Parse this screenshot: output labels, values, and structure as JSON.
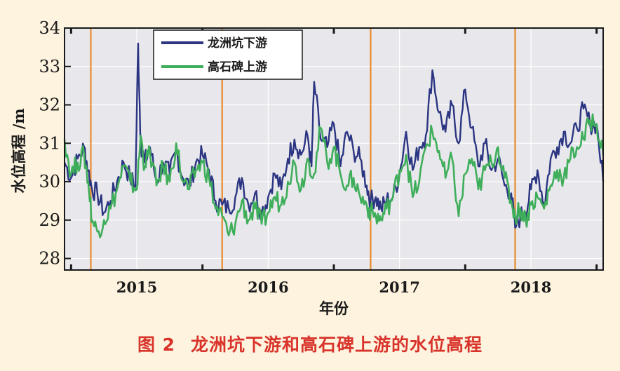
{
  "caption": {
    "figure_number": "图 2",
    "title": "龙洲坑下游和高石碑上游的水位高程"
  },
  "colors": {
    "background": "#fdf3de",
    "plot_bg": "#e8e8ec",
    "grid": "#ffffff",
    "series1": "#2b3582",
    "series2": "#3fae5a",
    "marker_line": "#e88a2e",
    "caption": "#d9342b"
  },
  "chart_data": {
    "type": "line",
    "title": "",
    "xlabel": "年份",
    "ylabel": "水位高程 /m",
    "xlim": [
      2014.45,
      2018.55
    ],
    "ylim": [
      27.7,
      34
    ],
    "yticks": [
      28,
      29,
      30,
      31,
      32,
      33,
      34
    ],
    "xticks": [
      {
        "value": 2015,
        "label": "2015"
      },
      {
        "value": 2016,
        "label": "2016"
      },
      {
        "value": 2017,
        "label": "2017"
      },
      {
        "value": 2018,
        "label": "2018"
      }
    ],
    "grid": true,
    "legend_position": "top-left",
    "vertical_markers": [
      2014.65,
      2015.65,
      2016.78,
      2017.88
    ],
    "series": [
      {
        "name": "龙洲坑下游",
        "x": [
          2014.45,
          2014.5,
          2014.55,
          2014.6,
          2014.63,
          2014.66,
          2014.7,
          2014.75,
          2014.8,
          2014.85,
          2014.9,
          2014.95,
          2014.99,
          2015.01,
          2015.03,
          2015.06,
          2015.1,
          2015.15,
          2015.2,
          2015.25,
          2015.3,
          2015.35,
          2015.4,
          2015.45,
          2015.5,
          2015.55,
          2015.6,
          2015.65,
          2015.7,
          2015.75,
          2015.8,
          2015.85,
          2015.9,
          2015.95,
          2016.0,
          2016.05,
          2016.1,
          2016.15,
          2016.2,
          2016.25,
          2016.3,
          2016.33,
          2016.35,
          2016.4,
          2016.45,
          2016.5,
          2016.55,
          2016.6,
          2016.65,
          2016.7,
          2016.75,
          2016.78,
          2016.82,
          2016.86,
          2016.9,
          2016.95,
          2017.0,
          2017.05,
          2017.1,
          2017.15,
          2017.2,
          2017.25,
          2017.3,
          2017.35,
          2017.4,
          2017.45,
          2017.5,
          2017.55,
          2017.6,
          2017.65,
          2017.7,
          2017.75,
          2017.8,
          2017.85,
          2017.88,
          2017.92,
          2017.96,
          2018.0,
          2018.05,
          2018.1,
          2018.15,
          2018.2,
          2018.25,
          2018.3,
          2018.35,
          2018.4,
          2018.45,
          2018.5,
          2018.55
        ],
        "values": [
          30.5,
          30.1,
          30.6,
          30.9,
          30.3,
          29.8,
          29.7,
          29.2,
          29.5,
          30.0,
          30.5,
          30.1,
          29.9,
          33.6,
          31.0,
          30.5,
          30.9,
          30.0,
          30.5,
          30.2,
          30.8,
          30.1,
          29.9,
          30.5,
          30.7,
          30.3,
          29.5,
          29.4,
          29.3,
          29.6,
          30.1,
          29.4,
          29.7,
          29.2,
          29.6,
          30.2,
          29.8,
          30.6,
          31.1,
          30.7,
          31.2,
          30.4,
          32.6,
          31.1,
          30.9,
          31.5,
          30.4,
          31.3,
          30.8,
          30.6,
          29.9,
          29.5,
          29.6,
          29.3,
          29.5,
          29.6,
          30.2,
          31.3,
          30.3,
          30.9,
          31.2,
          32.9,
          31.8,
          31.3,
          32.0,
          31.0,
          32.4,
          31.4,
          30.4,
          31.0,
          30.3,
          30.6,
          29.9,
          29.7,
          28.8,
          29.1,
          29.2,
          29.8,
          30.3,
          29.4,
          30.6,
          30.9,
          31.3,
          31.0,
          31.4,
          31.9,
          31.5,
          31.5,
          30.0
        ]
      },
      {
        "name": "高石碑上游",
        "x": [
          2014.45,
          2014.5,
          2014.55,
          2014.6,
          2014.63,
          2014.66,
          2014.7,
          2014.75,
          2014.8,
          2014.85,
          2014.9,
          2014.95,
          2015.0,
          2015.03,
          2015.06,
          2015.1,
          2015.15,
          2015.2,
          2015.25,
          2015.3,
          2015.35,
          2015.4,
          2015.45,
          2015.5,
          2015.55,
          2015.6,
          2015.65,
          2015.7,
          2015.75,
          2015.8,
          2015.85,
          2015.9,
          2015.95,
          2016.0,
          2016.05,
          2016.1,
          2016.15,
          2016.2,
          2016.25,
          2016.3,
          2016.35,
          2016.4,
          2016.45,
          2016.5,
          2016.55,
          2016.6,
          2016.65,
          2016.7,
          2016.75,
          2016.78,
          2016.82,
          2016.86,
          2016.9,
          2016.95,
          2017.0,
          2017.05,
          2017.1,
          2017.15,
          2017.2,
          2017.25,
          2017.3,
          2017.35,
          2017.4,
          2017.45,
          2017.5,
          2017.55,
          2017.6,
          2017.65,
          2017.7,
          2017.75,
          2017.8,
          2017.85,
          2017.88,
          2017.92,
          2017.96,
          2018.0,
          2018.05,
          2018.1,
          2018.15,
          2018.2,
          2018.25,
          2018.3,
          2018.35,
          2018.4,
          2018.45,
          2018.5,
          2018.55
        ],
        "values": [
          31.1,
          30.2,
          30.5,
          30.7,
          30.0,
          29.0,
          28.7,
          29.0,
          29.3,
          29.8,
          30.4,
          30.0,
          29.8,
          31.2,
          30.4,
          30.8,
          29.9,
          30.4,
          30.0,
          31.0,
          30.0,
          29.8,
          30.3,
          30.5,
          30.1,
          29.3,
          29.1,
          28.6,
          28.9,
          29.5,
          29.0,
          29.3,
          28.9,
          29.2,
          29.6,
          29.4,
          30.0,
          30.5,
          29.8,
          30.6,
          30.2,
          31.4,
          30.5,
          30.9,
          30.2,
          29.9,
          30.1,
          29.6,
          29.4,
          29.2,
          29.1,
          29.0,
          29.3,
          29.6,
          30.3,
          30.7,
          29.6,
          30.0,
          30.9,
          31.3,
          30.8,
          30.1,
          30.6,
          29.1,
          30.2,
          30.6,
          29.8,
          30.3,
          30.5,
          30.9,
          30.1,
          29.5,
          29.1,
          29.3,
          29.0,
          29.4,
          29.6,
          29.3,
          29.9,
          30.3,
          30.1,
          30.6,
          30.9,
          31.1,
          31.6,
          31.5,
          30.7
        ]
      }
    ]
  }
}
